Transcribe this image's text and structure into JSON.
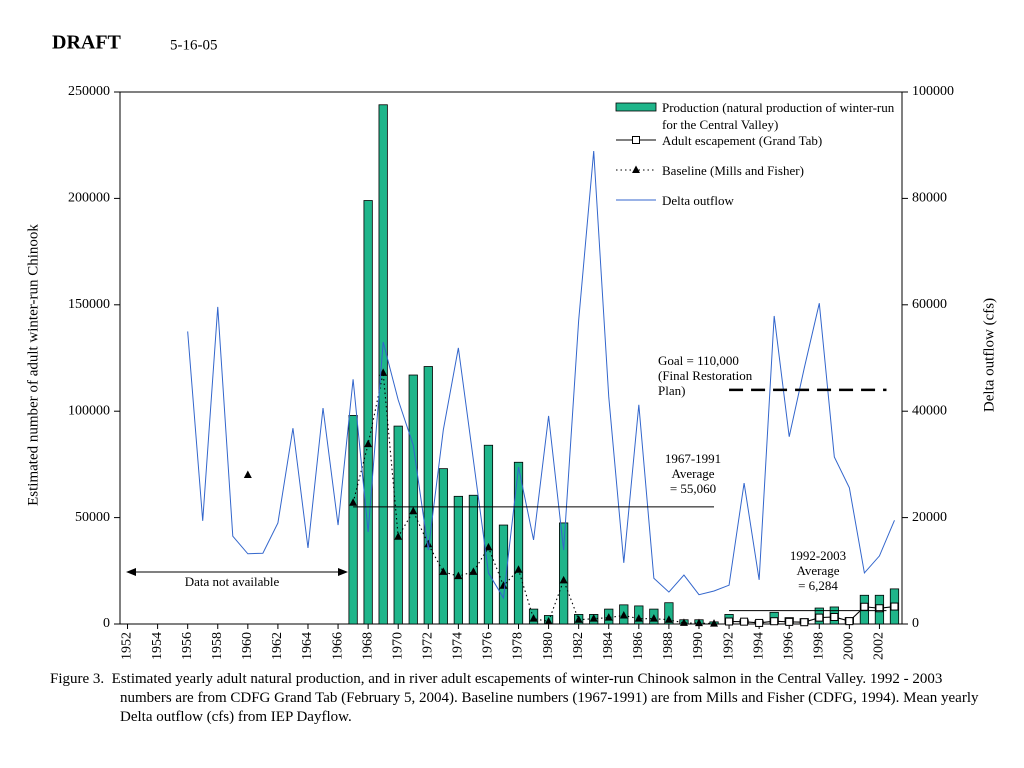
{
  "header": {
    "title": "DRAFT",
    "date": "5-16-05"
  },
  "chart_data": {
    "type": "bar",
    "ylabel": "Estimated number of adult winter-run Chinook",
    "y2label": "Delta outflow (cfs)",
    "x": [
      1952,
      1953,
      1954,
      1955,
      1956,
      1957,
      1958,
      1959,
      1960,
      1961,
      1962,
      1963,
      1964,
      1965,
      1966,
      1967,
      1968,
      1969,
      1970,
      1971,
      1972,
      1973,
      1974,
      1975,
      1976,
      1977,
      1978,
      1979,
      1980,
      1981,
      1982,
      1983,
      1984,
      1985,
      1986,
      1987,
      1988,
      1989,
      1990,
      1991,
      1992,
      1993,
      1994,
      1995,
      1996,
      1997,
      1998,
      1999,
      2000,
      2001,
      2002,
      2003
    ],
    "xlim": [
      1951.5,
      2003.5
    ],
    "xticks": [
      1952,
      1954,
      1956,
      1958,
      1960,
      1962,
      1964,
      1966,
      1968,
      1970,
      1972,
      1974,
      1976,
      1978,
      1980,
      1982,
      1984,
      1986,
      1988,
      1990,
      1992,
      1994,
      1996,
      1998,
      2000,
      2002
    ],
    "ylim": [
      0,
      250000
    ],
    "yticks": [
      0,
      50000,
      100000,
      150000,
      200000,
      250000
    ],
    "y2lim": [
      0,
      100000
    ],
    "y2ticks": [
      0,
      20000,
      40000,
      60000,
      80000,
      100000
    ],
    "series": [
      {
        "name": "Production (natural production of winter-run for the Central Valley)",
        "type": "bar",
        "color": "#1fb58a",
        "values": [
          null,
          null,
          null,
          null,
          null,
          null,
          null,
          null,
          null,
          null,
          null,
          null,
          null,
          null,
          null,
          98000,
          199000,
          244000,
          93000,
          117000,
          121000,
          73000,
          60000,
          60500,
          84000,
          46500,
          76000,
          7000,
          4000,
          47500,
          4500,
          4500,
          7000,
          9000,
          8500,
          7000,
          10000,
          2000,
          2000,
          1000,
          4500,
          2000,
          1500,
          5500,
          3000,
          2500,
          7500,
          8000,
          3000,
          13500,
          13500,
          16500
        ]
      },
      {
        "name": "Adult escapement (Grand Tab)",
        "type": "line",
        "color": "#000000",
        "marker": "square",
        "values": [
          null,
          null,
          null,
          null,
          null,
          null,
          null,
          null,
          null,
          null,
          null,
          null,
          null,
          null,
          null,
          null,
          null,
          null,
          null,
          null,
          null,
          null,
          null,
          null,
          null,
          null,
          null,
          null,
          null,
          null,
          null,
          null,
          null,
          null,
          null,
          null,
          null,
          null,
          null,
          null,
          1180,
          1100,
          500,
          1300,
          1000,
          840,
          3000,
          3300,
          1350,
          8100,
          7400,
          8200
        ]
      },
      {
        "name": "Baseline (Mills and Fisher)",
        "type": "line",
        "color": "#000000",
        "marker": "triangle",
        "dash": "dotted",
        "values": [
          null,
          null,
          null,
          null,
          null,
          null,
          null,
          null,
          70000,
          null,
          null,
          null,
          null,
          null,
          null,
          57000,
          84500,
          118000,
          41000,
          53000,
          37500,
          24500,
          22500,
          24500,
          36000,
          18000,
          25500,
          2500,
          1200,
          20500,
          2000,
          2500,
          3000,
          4000,
          2500,
          2500,
          2000,
          500,
          400,
          200,
          null,
          null,
          null,
          null,
          null,
          null,
          null,
          null,
          null,
          null,
          null,
          null
        ]
      },
      {
        "name": "Delta outflow",
        "type": "line",
        "color": "#3366cc",
        "axis": "y2",
        "values": [
          null,
          null,
          null,
          null,
          55000,
          19400,
          59600,
          16500,
          13200,
          13300,
          19000,
          36800,
          14300,
          40600,
          18600,
          46000,
          17300,
          53000,
          42100,
          33600,
          13900,
          36500,
          51900,
          30800,
          9600,
          4900,
          29500,
          15800,
          39100,
          13900,
          57100,
          88900,
          42700,
          11500,
          41200,
          8600,
          6000,
          9200,
          5500,
          6200,
          7300,
          26500,
          8300,
          57900,
          35200,
          48100,
          60300,
          31400,
          25600,
          9600,
          12800,
          19500
        ]
      }
    ],
    "reference_lines": [
      {
        "text": [
          "Goal = 110,000",
          "(Final Restoration",
          "Plan)"
        ],
        "value": 110000,
        "from": 1992,
        "to": 2003,
        "dash": "dashed"
      },
      {
        "text": [
          "1967-1991",
          "Average",
          "= 55,060"
        ],
        "value": 55060,
        "from": 1967,
        "to": 1991
      },
      {
        "text": [
          "1992-2003",
          "Average",
          "= 6,284"
        ],
        "value": 6284,
        "from": 1992,
        "to": 2003
      }
    ],
    "annotation": "Data not available"
  },
  "caption": "Figure 3.  Estimated yearly adult natural production, and in river adult escapements of winter-run Chinook salmon in the Central Valley. 1992 - 2003 numbers are from CDFG Grand Tab (February 5, 2004). Baseline numbers (1967-1991) are from Mills and Fisher (CDFG, 1994). Mean yearly Delta outflow (cfs) from IEP Dayflow."
}
